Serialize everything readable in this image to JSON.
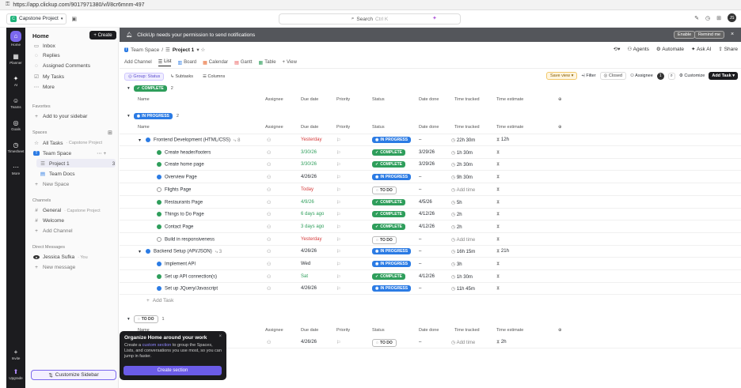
{
  "browser": {
    "url": "https://app.clickup.com/9017971380/v/l/8cr6mnm-497"
  },
  "topbar": {
    "workspace": "Capstone Project",
    "workspace_initial": "C",
    "search_label": "Search",
    "search_shortcut": "Ctrl K",
    "user_initials": "JS"
  },
  "rail": {
    "items": [
      {
        "label": "Home",
        "glyph": "⌂"
      },
      {
        "label": "Planner",
        "glyph": "▦"
      },
      {
        "label": "AI",
        "glyph": "✦"
      },
      {
        "label": "Teams",
        "glyph": "☺"
      },
      {
        "label": "Goals",
        "glyph": "◎"
      },
      {
        "label": "Timesheet",
        "glyph": "◷"
      },
      {
        "label": "More",
        "glyph": "⋯"
      },
      {
        "label": "Invite",
        "glyph": "+"
      },
      {
        "label": "Upgrade",
        "glyph": "⬆"
      }
    ]
  },
  "sidebar": {
    "title": "Home",
    "create": "Create",
    "items": [
      "Inbox",
      "Replies",
      "Assigned Comments",
      "My Tasks",
      "More"
    ],
    "favorites_label": "Favorites",
    "add_sidebar": "Add to your sidebar",
    "spaces_label": "Spaces",
    "all_tasks": "All Tasks",
    "all_tasks_sub": "· Capstone Project",
    "team_space": "Team Space",
    "project1": "Project 1",
    "project1_count": "3",
    "team_docs": "Team Docs",
    "new_space": "New Space",
    "channels_label": "Channels",
    "general": "General",
    "general_sub": "· Capstone Project",
    "welcome": "Welcome",
    "add_channel": "Add Channel",
    "dm_label": "Direct Messages",
    "dm_user": "Jessica Sufka",
    "dm_you": "· You",
    "new_message": "New message",
    "customize": "Customize Sidebar"
  },
  "notification": {
    "text": "ClickUp needs your permission to send notifications",
    "enable": "Enable",
    "remind": "Remind me"
  },
  "breadcrumb": {
    "space": "Team Space",
    "project": "Project 1"
  },
  "header_actions": [
    "Agents",
    "Automate",
    "Ask AI",
    "Share"
  ],
  "tabs": {
    "add_channel": "Add Channel",
    "items": [
      "List",
      "Board",
      "Calendar",
      "Gantt",
      "Table"
    ],
    "view": "View"
  },
  "filters": {
    "group": "Group: Status",
    "subtasks": "Subtasks",
    "columns": "Columns",
    "save_view": "Save view",
    "filter": "Filter",
    "closed": "Closed",
    "assignee": "Assignee",
    "assignee_count": "1",
    "customize": "Customize",
    "add_task": "Add Task"
  },
  "columns": {
    "name": "Name",
    "assignee": "Assignee",
    "due": "Due date",
    "priority": "Priority",
    "status": "Status",
    "done": "Date done",
    "tracked": "Time tracked",
    "estimate": "Time estimate"
  },
  "groups": {
    "complete": {
      "label": "COMPLETE",
      "count": "2"
    },
    "in_progress": {
      "label": "IN PROGRESS",
      "count": "2"
    },
    "todo": {
      "label": "TO DO",
      "count": "1"
    }
  },
  "rows": [
    {
      "name": "Frontend Development (HTML/CSS)",
      "sub": "8",
      "due": "Yesterday",
      "due_color": "red",
      "status": "IN PROGRESS",
      "st": "progress",
      "done": "–",
      "tracked": "22h 30m",
      "estimate": "12h",
      "parent": true
    },
    {
      "name": "Create header/footers",
      "due": "3/30/26",
      "due_color": "green",
      "status": "COMPLETE",
      "st": "complete",
      "done": "3/29/26",
      "tracked": "1h 30m",
      "estimate": ""
    },
    {
      "name": "Create home page",
      "due": "3/30/26",
      "due_color": "green",
      "status": "COMPLETE",
      "st": "complete",
      "done": "3/29/26",
      "tracked": "2h 30m",
      "estimate": ""
    },
    {
      "name": "Overview Page",
      "due": "4/26/26",
      "due_color": "",
      "status": "IN PROGRESS",
      "st": "progress",
      "done": "–",
      "tracked": "9h 30m",
      "estimate": ""
    },
    {
      "name": "Flights Page",
      "due": "Today",
      "due_color": "red",
      "status": "TO DO",
      "st": "todo",
      "done": "–",
      "tracked": "Add time",
      "estimate": ""
    },
    {
      "name": "Restaurants Page",
      "due": "4/9/26",
      "due_color": "green",
      "status": "COMPLETE",
      "st": "complete",
      "done": "4/5/26",
      "tracked": "5h",
      "estimate": ""
    },
    {
      "name": "Things to Do Page",
      "due": "6 days ago",
      "due_color": "green",
      "status": "COMPLETE",
      "st": "complete",
      "done": "4/12/26",
      "tracked": "2h",
      "estimate": ""
    },
    {
      "name": "Contact Page",
      "due": "3 days ago",
      "due_color": "green",
      "status": "COMPLETE",
      "st": "complete",
      "done": "4/12/26",
      "tracked": "2h",
      "estimate": ""
    },
    {
      "name": "Build in responsiveness",
      "due": "Yesterday",
      "due_color": "red",
      "status": "TO DO",
      "st": "todo",
      "done": "–",
      "tracked": "Add time",
      "estimate": ""
    },
    {
      "name": "Backend Setup (API/JSON)",
      "sub": "3",
      "due": "4/26/26",
      "due_color": "",
      "status": "IN PROGRESS",
      "st": "progress",
      "done": "–",
      "tracked": "16h 15m",
      "estimate": "21h",
      "parent": true
    },
    {
      "name": "Implement API",
      "due": "Wed",
      "due_color": "",
      "status": "IN PROGRESS",
      "st": "progress",
      "done": "–",
      "tracked": "3h",
      "estimate": ""
    },
    {
      "name": "Set up API connection(s)",
      "due": "Sat",
      "due_color": "green",
      "status": "COMPLETE",
      "st": "complete",
      "done": "4/12/26",
      "tracked": "1h 30m",
      "estimate": ""
    },
    {
      "name": "Set up JQuery/Javascript",
      "due": "4/26/26",
      "due_color": "",
      "status": "IN PROGRESS",
      "st": "progress",
      "done": "–",
      "tracked": "11h 45m",
      "estimate": ""
    }
  ],
  "add_task": "Add Task",
  "todo_row": {
    "due": "4/26/26",
    "status": "TO DO",
    "done": "–",
    "tracked": "Add time",
    "estimate": "2h"
  },
  "popup": {
    "title": "Organize Home around your work",
    "pre": "Create a ",
    "link": "custom section",
    "post": " to group the Spaces, Lists, and conversations you use most, so you can jump in faster.",
    "button": "Create section"
  }
}
